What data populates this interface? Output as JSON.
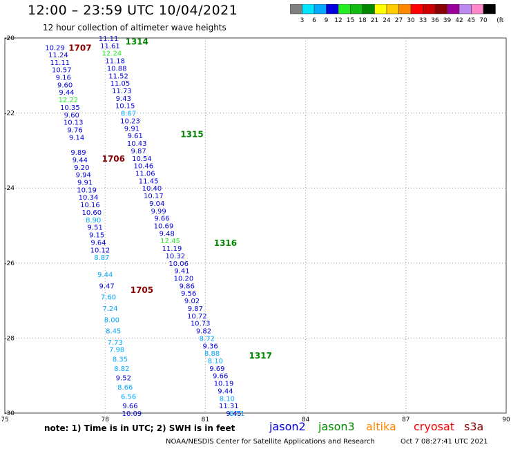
{
  "header": {
    "title": "12:00 – 23:59 UTC 10/04/2021",
    "subtitle": "12 hour collection of altimeter wave heights"
  },
  "legend": {
    "unit": "(ft)",
    "bins": [
      {
        "label": "3",
        "color": "#808080"
      },
      {
        "label": "6",
        "color": "#00e5ff"
      },
      {
        "label": "9",
        "color": "#00a8ff"
      },
      {
        "label": "12",
        "color": "#0000dd"
      },
      {
        "label": "15",
        "color": "#22ee22"
      },
      {
        "label": "18",
        "color": "#11bb11"
      },
      {
        "label": "21",
        "color": "#008800"
      },
      {
        "label": "24",
        "color": "#ffff00"
      },
      {
        "label": "27",
        "color": "#ffcc00"
      },
      {
        "label": "30",
        "color": "#ff8800"
      },
      {
        "label": "33",
        "color": "#ff0000"
      },
      {
        "label": "36",
        "color": "#cc0000"
      },
      {
        "label": "39",
        "color": "#880000"
      },
      {
        "label": "42",
        "color": "#990099"
      },
      {
        "label": "45",
        "color": "#bb88ee"
      },
      {
        "label": "70",
        "color": "#ff88cc"
      },
      {
        "label": "",
        "color": "#000000"
      }
    ]
  },
  "map": {
    "lon_range": [
      75,
      90
    ],
    "lat_range": [
      -20,
      -30
    ],
    "lon_ticks": [
      "75",
      "78",
      "81",
      "84",
      "87",
      "90"
    ],
    "lat_ticks": [
      "-20",
      "-22",
      "-24",
      "-26",
      "-28",
      "-30"
    ]
  },
  "passes": [
    {
      "id": "1707",
      "lon": 77.25,
      "lat": -20.25,
      "color": "#880000"
    },
    {
      "id": "1314",
      "lon": 78.95,
      "lat": -20.08,
      "color": "#008800"
    },
    {
      "id": "1315",
      "lon": 80.6,
      "lat": -22.55,
      "color": "#008800"
    },
    {
      "id": "1706",
      "lon": 78.25,
      "lat": -23.2,
      "color": "#880000"
    },
    {
      "id": "1316",
      "lon": 81.6,
      "lat": -25.45,
      "color": "#008800"
    },
    {
      "id": "1705",
      "lon": 79.1,
      "lat": -26.7,
      "color": "#880000"
    },
    {
      "id": "1317",
      "lon": 82.65,
      "lat": -28.45,
      "color": "#008800"
    }
  ],
  "tracks": [
    {
      "name": "1707",
      "points": [
        {
          "lon": 76.5,
          "lat": -20.25,
          "v": "10.29",
          "color": "#0000dd"
        },
        {
          "lon": 76.6,
          "lat": -20.44,
          "v": "11.24",
          "color": "#0000dd"
        },
        {
          "lon": 76.65,
          "lat": -20.64,
          "v": "11.11",
          "color": "#0000dd"
        },
        {
          "lon": 76.7,
          "lat": -20.84,
          "v": "10.57",
          "color": "#0000dd"
        },
        {
          "lon": 76.75,
          "lat": -21.04,
          "v": "9.16",
          "color": "#0000dd"
        },
        {
          "lon": 76.8,
          "lat": -21.24,
          "v": "9.60",
          "color": "#0000dd"
        },
        {
          "lon": 76.85,
          "lat": -21.44,
          "v": "9.44",
          "color": "#0000dd"
        },
        {
          "lon": 76.9,
          "lat": -21.64,
          "v": "12.22",
          "color": "#22ee22"
        },
        {
          "lon": 76.95,
          "lat": -21.84,
          "v": "10.35",
          "color": "#0000dd"
        },
        {
          "lon": 77.0,
          "lat": -22.04,
          "v": "9.60",
          "color": "#0000dd"
        },
        {
          "lon": 77.05,
          "lat": -22.24,
          "v": "10.13",
          "color": "#0000dd"
        },
        {
          "lon": 77.1,
          "lat": -22.44,
          "v": "9.76",
          "color": "#0000dd"
        },
        {
          "lon": 77.15,
          "lat": -22.64,
          "v": "9.14",
          "color": "#0000dd"
        },
        {
          "lon": 77.2,
          "lat": -23.04,
          "v": "9.89",
          "color": "#0000dd"
        },
        {
          "lon": 77.25,
          "lat": -23.24,
          "v": "9.44",
          "color": "#0000dd"
        },
        {
          "lon": 77.3,
          "lat": -23.44,
          "v": "9.20",
          "color": "#0000dd"
        },
        {
          "lon": 77.35,
          "lat": -23.64,
          "v": "9.94",
          "color": "#0000dd"
        },
        {
          "lon": 77.4,
          "lat": -23.84,
          "v": "9.91",
          "color": "#0000dd"
        },
        {
          "lon": 77.45,
          "lat": -24.04,
          "v": "10.19",
          "color": "#0000dd"
        },
        {
          "lon": 77.5,
          "lat": -24.24,
          "v": "10.34",
          "color": "#0000dd"
        },
        {
          "lon": 77.55,
          "lat": -24.44,
          "v": "10.16",
          "color": "#0000dd"
        },
        {
          "lon": 77.6,
          "lat": -24.64,
          "v": "10.60",
          "color": "#0000dd"
        },
        {
          "lon": 77.65,
          "lat": -24.84,
          "v": "8.90",
          "color": "#00a8ff"
        },
        {
          "lon": 77.7,
          "lat": -25.04,
          "v": "9.51",
          "color": "#0000dd"
        },
        {
          "lon": 77.75,
          "lat": -25.24,
          "v": "9.15",
          "color": "#0000dd"
        },
        {
          "lon": 77.8,
          "lat": -25.44,
          "v": "9.64",
          "color": "#0000dd"
        },
        {
          "lon": 77.85,
          "lat": -25.64,
          "v": "10.12",
          "color": "#0000dd"
        },
        {
          "lon": 77.9,
          "lat": -25.84,
          "v": "8.87",
          "color": "#00a8ff"
        }
      ]
    },
    {
      "name": "1314",
      "points": [
        {
          "lon": 78.1,
          "lat": -20.0,
          "v": "11.11",
          "color": "#0000dd"
        },
        {
          "lon": 78.15,
          "lat": -20.2,
          "v": "11.61",
          "color": "#0000dd"
        },
        {
          "lon": 78.2,
          "lat": -20.4,
          "v": "12.24",
          "color": "#22ee22"
        },
        {
          "lon": 78.3,
          "lat": -20.6,
          "v": "11.18",
          "color": "#0000dd"
        },
        {
          "lon": 78.35,
          "lat": -20.8,
          "v": "10.88",
          "color": "#0000dd"
        },
        {
          "lon": 78.4,
          "lat": -21.0,
          "v": "11.52",
          "color": "#0000dd"
        },
        {
          "lon": 78.45,
          "lat": -21.2,
          "v": "11.05",
          "color": "#0000dd"
        },
        {
          "lon": 78.5,
          "lat": -21.4,
          "v": "11.73",
          "color": "#0000dd"
        },
        {
          "lon": 78.55,
          "lat": -21.6,
          "v": "9.43",
          "color": "#0000dd"
        },
        {
          "lon": 78.6,
          "lat": -21.8,
          "v": "10.15",
          "color": "#0000dd"
        },
        {
          "lon": 78.7,
          "lat": -22.0,
          "v": "8.67",
          "color": "#00a8ff"
        },
        {
          "lon": 78.75,
          "lat": -22.2,
          "v": "10.23",
          "color": "#0000dd"
        },
        {
          "lon": 78.8,
          "lat": -22.4,
          "v": "9.91",
          "color": "#0000dd"
        },
        {
          "lon": 78.9,
          "lat": -22.6,
          "v": "9.61",
          "color": "#0000dd"
        },
        {
          "lon": 78.95,
          "lat": -22.8,
          "v": "10.43",
          "color": "#0000dd"
        },
        {
          "lon": 79.0,
          "lat": -23.0,
          "v": "9.87",
          "color": "#0000dd"
        },
        {
          "lon": 79.1,
          "lat": -23.2,
          "v": "10.54",
          "color": "#0000dd"
        },
        {
          "lon": 79.15,
          "lat": -23.4,
          "v": "10.46",
          "color": "#0000dd"
        },
        {
          "lon": 79.2,
          "lat": -23.6,
          "v": "11.06",
          "color": "#0000dd"
        },
        {
          "lon": 79.3,
          "lat": -23.8,
          "v": "11.45",
          "color": "#0000dd"
        }
      ]
    },
    {
      "name": "1315",
      "points": [
        {
          "lon": 79.4,
          "lat": -24.0,
          "v": "10.40",
          "color": "#0000dd"
        },
        {
          "lon": 79.45,
          "lat": -24.2,
          "v": "10.17",
          "color": "#0000dd"
        },
        {
          "lon": 79.55,
          "lat": -24.4,
          "v": "9.04",
          "color": "#0000dd"
        },
        {
          "lon": 79.6,
          "lat": -24.6,
          "v": "9.99",
          "color": "#0000dd"
        },
        {
          "lon": 79.7,
          "lat": -24.8,
          "v": "9.66",
          "color": "#0000dd"
        },
        {
          "lon": 79.75,
          "lat": -25.0,
          "v": "10.69",
          "color": "#0000dd"
        },
        {
          "lon": 79.85,
          "lat": -25.2,
          "v": "9.48",
          "color": "#0000dd"
        },
        {
          "lon": 79.95,
          "lat": -25.4,
          "v": "12.45",
          "color": "#22ee22"
        },
        {
          "lon": 80.0,
          "lat": -25.6,
          "v": "11.19",
          "color": "#0000dd"
        },
        {
          "lon": 80.1,
          "lat": -25.8,
          "v": "10.32",
          "color": "#0000dd"
        },
        {
          "lon": 80.2,
          "lat": -26.0,
          "v": "10.06",
          "color": "#0000dd"
        },
        {
          "lon": 80.3,
          "lat": -26.2,
          "v": "9.41",
          "color": "#0000dd"
        },
        {
          "lon": 80.35,
          "lat": -26.4,
          "v": "10.20",
          "color": "#0000dd"
        },
        {
          "lon": 80.45,
          "lat": -26.6,
          "v": "9.86",
          "color": "#0000dd"
        },
        {
          "lon": 80.5,
          "lat": -26.8,
          "v": "9.56",
          "color": "#0000dd"
        },
        {
          "lon": 80.6,
          "lat": -27.0,
          "v": "9.02",
          "color": "#0000dd"
        },
        {
          "lon": 80.7,
          "lat": -27.2,
          "v": "9.87",
          "color": "#0000dd"
        },
        {
          "lon": 80.75,
          "lat": -27.4,
          "v": "10.72",
          "color": "#0000dd"
        },
        {
          "lon": 80.85,
          "lat": -27.6,
          "v": "10.73",
          "color": "#0000dd"
        },
        {
          "lon": 80.95,
          "lat": -27.8,
          "v": "9.82",
          "color": "#0000dd"
        }
      ]
    },
    {
      "name": "1705",
      "points": [
        {
          "lon": 78.0,
          "lat": -26.3,
          "v": "9.44",
          "color": "#00a8ff"
        },
        {
          "lon": 78.05,
          "lat": -26.6,
          "v": "9.47",
          "color": "#0000dd"
        },
        {
          "lon": 78.1,
          "lat": -26.9,
          "v": "7.60",
          "color": "#00a8ff"
        },
        {
          "lon": 78.15,
          "lat": -27.2,
          "v": "7.24",
          "color": "#00a8ff"
        },
        {
          "lon": 78.2,
          "lat": -27.5,
          "v": "8.00",
          "color": "#00a8ff"
        },
        {
          "lon": 78.25,
          "lat": -27.8,
          "v": "8.45",
          "color": "#00a8ff"
        },
        {
          "lon": 78.3,
          "lat": -28.1,
          "v": "7.73",
          "color": "#00a8ff"
        },
        {
          "lon": 78.35,
          "lat": -28.3,
          "v": "7.98",
          "color": "#00a8ff"
        },
        {
          "lon": 78.45,
          "lat": -28.55,
          "v": "8.35",
          "color": "#00a8ff"
        },
        {
          "lon": 78.5,
          "lat": -28.8,
          "v": "8.82",
          "color": "#00a8ff"
        },
        {
          "lon": 78.55,
          "lat": -29.05,
          "v": "9.52",
          "color": "#0000dd"
        },
        {
          "lon": 78.6,
          "lat": -29.3,
          "v": "8.66",
          "color": "#00a8ff"
        },
        {
          "lon": 78.7,
          "lat": -29.55,
          "v": "6.56",
          "color": "#00a8ff"
        },
        {
          "lon": 78.75,
          "lat": -29.8,
          "v": "9.66",
          "color": "#0000dd"
        },
        {
          "lon": 78.8,
          "lat": -30.0,
          "v": "10.09",
          "color": "#0000dd"
        }
      ]
    },
    {
      "name": "1316",
      "points": [
        {
          "lon": 81.05,
          "lat": -28.0,
          "v": "8.72",
          "color": "#00a8ff"
        },
        {
          "lon": 81.15,
          "lat": -28.2,
          "v": "9.36",
          "color": "#0000dd"
        },
        {
          "lon": 81.2,
          "lat": -28.4,
          "v": "8.88",
          "color": "#00a8ff"
        },
        {
          "lon": 81.3,
          "lat": -28.6,
          "v": "8.10",
          "color": "#00a8ff"
        },
        {
          "lon": 81.35,
          "lat": -28.8,
          "v": "9.69",
          "color": "#0000dd"
        },
        {
          "lon": 81.45,
          "lat": -29.0,
          "v": "9.66",
          "color": "#0000dd"
        },
        {
          "lon": 81.55,
          "lat": -29.2,
          "v": "10.19",
          "color": "#0000dd"
        },
        {
          "lon": 81.6,
          "lat": -29.4,
          "v": "9.44",
          "color": "#0000dd"
        },
        {
          "lon": 81.65,
          "lat": -29.6,
          "v": "8.10",
          "color": "#00a8ff"
        },
        {
          "lon": 81.7,
          "lat": -29.8,
          "v": "11.31",
          "color": "#0000dd"
        },
        {
          "lon": 81.85,
          "lat": -30.0,
          "v": "9.45",
          "color": "#0000dd"
        },
        {
          "lon": 81.95,
          "lat": -30.0,
          "v": "8.71",
          "color": "#00a8ff"
        }
      ]
    }
  ],
  "footer": {
    "note": "note: 1) Time is in UTC; 2) SWH is in feet",
    "satellites": [
      {
        "name": "jason2",
        "color": "#0000dd"
      },
      {
        "name": "jason3",
        "color": "#008800"
      },
      {
        "name": "altika",
        "color": "#ff8800"
      },
      {
        "name": "cryosat",
        "color": "#ff0000"
      },
      {
        "name": "s3a",
        "color": "#880000"
      }
    ],
    "credit": "NOAA/NESDIS Center for Satellite Applications and Research",
    "timestamp": "Oct  7 08:27:41 UTC 2021"
  }
}
